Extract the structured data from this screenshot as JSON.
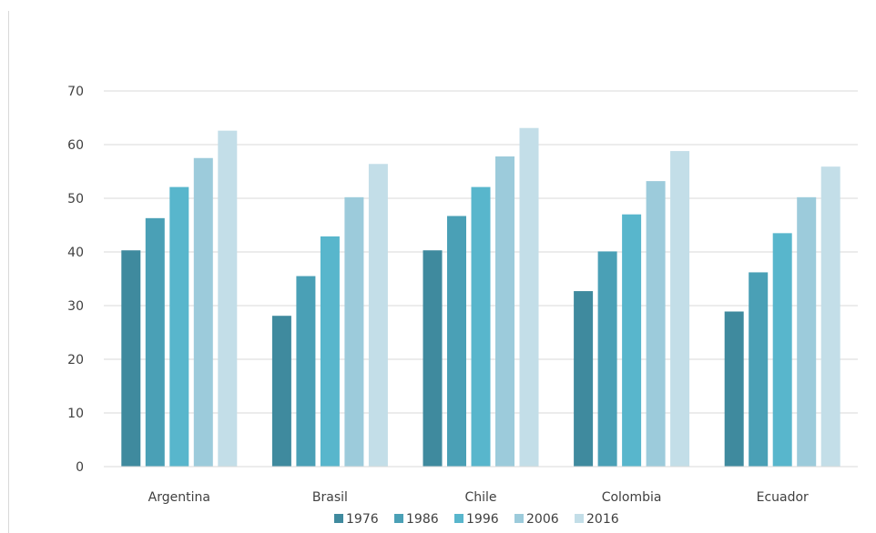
{
  "chart_data": {
    "type": "bar",
    "categories": [
      "Argentina",
      "Brasil",
      "Chile",
      "Colombia",
      "Ecuador"
    ],
    "series": [
      {
        "name": "1976",
        "color": "#3f8a9e",
        "values": [
          40.3,
          28.1,
          40.3,
          32.7,
          28.9
        ]
      },
      {
        "name": "1986",
        "color": "#4aa0b6",
        "values": [
          46.3,
          35.5,
          46.7,
          40.1,
          36.2
        ]
      },
      {
        "name": "1996",
        "color": "#58b6cc",
        "values": [
          52.1,
          42.9,
          52.1,
          47.0,
          43.5
        ]
      },
      {
        "name": "2006",
        "color": "#9ccbdb",
        "values": [
          57.5,
          50.2,
          57.8,
          53.2,
          50.2
        ]
      },
      {
        "name": "2016",
        "color": "#c3dee8",
        "values": [
          62.6,
          56.4,
          63.1,
          58.8,
          55.9
        ]
      }
    ],
    "ylim": [
      0,
      70
    ],
    "yticks": [
      0,
      10,
      20,
      30,
      40,
      50,
      60,
      70
    ],
    "grid": true,
    "legend_position": "bottom"
  }
}
